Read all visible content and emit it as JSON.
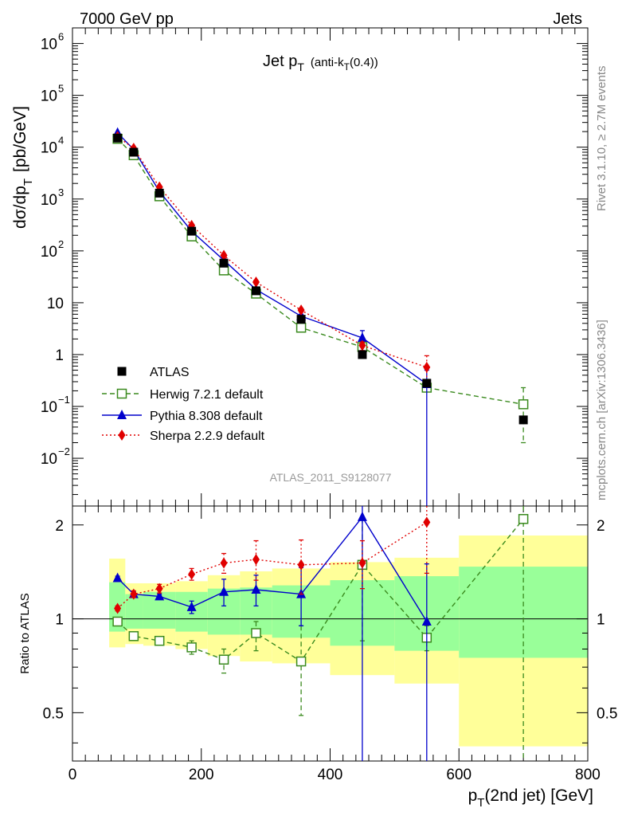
{
  "header": {
    "left": "7000 GeV pp",
    "right": "Jets"
  },
  "side_text": {
    "rivet": "Rivet 3.1.10, ≥ 2.7M events",
    "mcplots": "mcplots.cern.ch [arXiv:1306.3436]"
  },
  "colors": {
    "atlas": "#000000",
    "herwig": "#3a8a1e",
    "pythia": "#0000cc",
    "sherpa": "#e00000",
    "band_inner": "#99ff99",
    "band_outer": "#ffff99"
  },
  "chart_data": [
    {
      "type": "scatter",
      "panel": "main",
      "title_main": "Jet p",
      "title_sub": "T",
      "title_rest": "(anti-k",
      "title_rest_sub": "T",
      "title_end": "(0.4))",
      "watermark": "ATLAS_2011_S9128077",
      "ylabel": "dσ/dp",
      "ylabel_sub": "T",
      "ylabel_unit": "[pb/GeV]",
      "yscale": "log",
      "ylim": [
        0.0012,
        2000000
      ],
      "xlim": [
        0,
        800
      ],
      "y_ticks": [
        {
          "v": 1000000,
          "m": "10",
          "e": "6"
        },
        {
          "v": 100000,
          "m": "10",
          "e": "5"
        },
        {
          "v": 10000,
          "m": "10",
          "e": "4"
        },
        {
          "v": 1000,
          "m": "10",
          "e": "3"
        },
        {
          "v": 100,
          "m": "10",
          "e": "2"
        },
        {
          "v": 10,
          "m": "10",
          "e": ""
        },
        {
          "v": 1,
          "m": "1",
          "e": ""
        },
        {
          "v": 0.1,
          "m": "10",
          "e": "−1"
        },
        {
          "v": 0.01,
          "m": "10",
          "e": "−2"
        }
      ],
      "series": [
        {
          "name": "ATLAS",
          "key": "atlas",
          "marker": "square",
          "x": [
            70,
            95,
            135,
            185,
            235,
            285,
            355,
            450,
            550,
            700
          ],
          "y": [
            15000,
            8000,
            1300,
            240,
            58,
            17,
            4.8,
            1.0,
            0.28,
            0.055
          ]
        },
        {
          "name": "Herwig 7.2.1 default",
          "key": "herwig",
          "marker": "open-square",
          "line": "dashed",
          "x": [
            70,
            95,
            135,
            185,
            235,
            285,
            355,
            450,
            550,
            700
          ],
          "y": [
            14500,
            7000,
            1130,
            190,
            42,
            15,
            3.3,
            1.4,
            0.23,
            0.11
          ],
          "err_hi": [
            15000,
            7200,
            1160,
            196,
            45,
            15.5,
            3.7,
            1.7,
            0.26,
            0.23
          ],
          "err_lo": [
            14000,
            6800,
            1100,
            184,
            39,
            14.5,
            2.8,
            1.1,
            0.2,
            0.02
          ]
        },
        {
          "name": "Pythia 8.308 default",
          "key": "pythia",
          "marker": "triangle",
          "line": "solid",
          "x": [
            70,
            95,
            135,
            185,
            235,
            285,
            355,
            450,
            550
          ],
          "y": [
            19000,
            9000,
            1400,
            240,
            66,
            18,
            5.5,
            2.1,
            0.27
          ],
          "err_hi": [
            19500,
            9200,
            1440,
            250,
            70,
            19,
            6,
            2.9,
            0.5
          ],
          "err_lo": [
            18500,
            8800,
            1360,
            230,
            62,
            17,
            5,
            1.4,
            0.0005
          ]
        },
        {
          "name": "Sherpa 2.2.9 default",
          "key": "sherpa",
          "marker": "diamond",
          "line": "dotted",
          "x": [
            70,
            95,
            135,
            185,
            235,
            285,
            355,
            450,
            550
          ],
          "y": [
            16000,
            9500,
            1700,
            310,
            82,
            25,
            7.2,
            1.5,
            0.57
          ],
          "err_hi": [
            16500,
            9800,
            1760,
            322,
            88,
            27,
            7.8,
            1.75,
            0.95
          ],
          "err_lo": [
            15500,
            9200,
            1640,
            298,
            76,
            23,
            6.6,
            1.2,
            0.3
          ]
        }
      ]
    },
    {
      "type": "scatter",
      "panel": "ratio",
      "ylabel": "Ratio to ATLAS",
      "xlabel": "p",
      "xlabel_sub": "T",
      "xlabel_rest": "(2nd jet) [GeV]",
      "xlim": [
        0,
        800
      ],
      "ylim": [
        0.35,
        2.3
      ],
      "x_ticks": [
        "0",
        "200",
        "400",
        "600",
        "800"
      ],
      "y_ticks": [
        "0.5",
        "1",
        "2"
      ],
      "bands": [
        {
          "x0": 57,
          "x1": 82,
          "inner": [
            0.91,
            1.31
          ],
          "outer": [
            0.81,
            1.56
          ]
        },
        {
          "x0": 82,
          "x1": 110,
          "inner": [
            0.93,
            1.2
          ],
          "outer": [
            0.83,
            1.3
          ]
        },
        {
          "x0": 110,
          "x1": 160,
          "inner": [
            0.93,
            1.22
          ],
          "outer": [
            0.82,
            1.3
          ]
        },
        {
          "x0": 160,
          "x1": 210,
          "inner": [
            0.91,
            1.22
          ],
          "outer": [
            0.8,
            1.32
          ]
        },
        {
          "x0": 210,
          "x1": 260,
          "inner": [
            0.89,
            1.25
          ],
          "outer": [
            0.76,
            1.38
          ]
        },
        {
          "x0": 260,
          "x1": 310,
          "inner": [
            0.89,
            1.26
          ],
          "outer": [
            0.73,
            1.42
          ]
        },
        {
          "x0": 310,
          "x1": 400,
          "inner": [
            0.87,
            1.28
          ],
          "outer": [
            0.72,
            1.45
          ]
        },
        {
          "x0": 400,
          "x1": 500,
          "inner": [
            0.82,
            1.33
          ],
          "outer": [
            0.66,
            1.52
          ]
        },
        {
          "x0": 500,
          "x1": 600,
          "inner": [
            0.79,
            1.37
          ],
          "outer": [
            0.62,
            1.57
          ]
        },
        {
          "x0": 600,
          "x1": 800,
          "inner": [
            0.75,
            1.47
          ],
          "outer": [
            0.39,
            1.85
          ]
        }
      ],
      "series": [
        {
          "name": "Herwig 7.2.1 default",
          "key": "herwig",
          "marker": "open-square",
          "line": "dashed",
          "x": [
            70,
            95,
            135,
            185,
            235,
            285,
            355,
            450,
            550,
            700
          ],
          "y": [
            0.98,
            0.88,
            0.85,
            0.81,
            0.74,
            0.9,
            0.73,
            1.49,
            0.87,
            2.09
          ],
          "err_hi": [
            0.99,
            0.9,
            0.87,
            0.85,
            0.8,
            0.98,
            0.95,
            2.1,
            0.95,
            2.5
          ],
          "err_lo": [
            0.97,
            0.87,
            0.83,
            0.77,
            0.67,
            0.79,
            0.49,
            0.85,
            0.79,
            0.35
          ]
        },
        {
          "name": "Pythia 8.308 default",
          "key": "pythia",
          "marker": "triangle",
          "line": "solid",
          "x": [
            70,
            95,
            135,
            185,
            235,
            285,
            355,
            450,
            550
          ],
          "y": [
            1.35,
            1.2,
            1.18,
            1.09,
            1.22,
            1.24,
            1.2,
            2.12,
            0.98
          ],
          "err_hi": [
            1.37,
            1.22,
            1.2,
            1.14,
            1.34,
            1.38,
            1.46,
            2.5,
            1.5
          ],
          "err_lo": [
            1.33,
            1.18,
            1.16,
            1.04,
            1.1,
            1.1,
            0.95,
            0.35,
            0.35
          ]
        },
        {
          "name": "Sherpa 2.2.9 default",
          "key": "sherpa",
          "marker": "diamond",
          "line": "dotted",
          "x": [
            70,
            95,
            135,
            185,
            235,
            285,
            355,
            450,
            550
          ],
          "y": [
            1.08,
            1.2,
            1.25,
            1.39,
            1.51,
            1.55,
            1.49,
            1.51,
            2.04
          ],
          "err_hi": [
            1.1,
            1.23,
            1.29,
            1.45,
            1.62,
            1.78,
            1.79,
            1.78,
            2.3
          ],
          "err_lo": [
            1.06,
            1.17,
            1.21,
            1.33,
            1.4,
            1.33,
            1.2,
            1.25,
            1.4
          ]
        }
      ]
    }
  ]
}
